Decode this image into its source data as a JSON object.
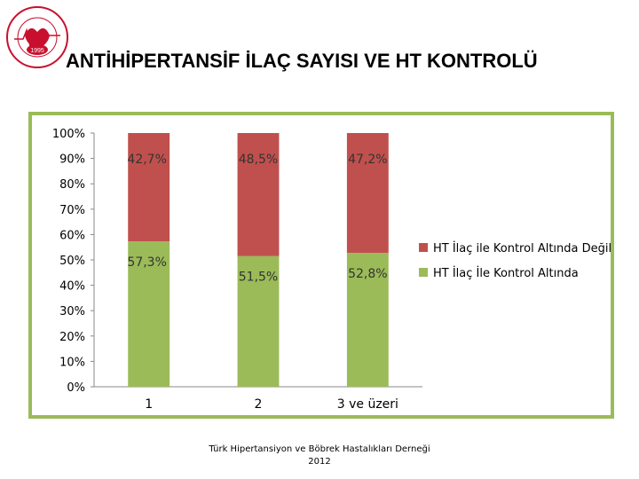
{
  "header": {
    "title": "ANTİHİPERTANSİF İLAÇ SAYISI VE HT KONTROLÜ",
    "logo_year": "1995"
  },
  "footer": {
    "line1": "Türk Hipertansiyon ve Böbrek Hastalıkları Derneği",
    "line2": "2012"
  },
  "colors": {
    "frame": "#9bbb59",
    "controlled": "#9bbb59",
    "uncontrolled": "#c0504d",
    "logo_red": "#c8102e"
  },
  "chart_data": {
    "type": "bar",
    "stacked": true,
    "categories": [
      "1",
      "2",
      "3 ve üzeri"
    ],
    "series": [
      {
        "name": "HT İlaç İle Kontrol Altında",
        "values": [
          57.3,
          51.5,
          52.8
        ],
        "labels": [
          "57,3%",
          "51,5%",
          "52,8%"
        ],
        "color": "#9bbb59"
      },
      {
        "name": "HT İlaç ile Kontrol Altında Değil",
        "values": [
          42.7,
          48.5,
          47.2
        ],
        "labels": [
          "42,7%",
          "48,5%",
          "47,2%"
        ],
        "color": "#c0504d"
      }
    ],
    "y_ticks": [
      "0%",
      "10%",
      "20%",
      "30%",
      "40%",
      "50%",
      "60%",
      "70%",
      "80%",
      "90%",
      "100%"
    ],
    "ylim": [
      0,
      100
    ],
    "grid": false,
    "legend_position": "right"
  }
}
